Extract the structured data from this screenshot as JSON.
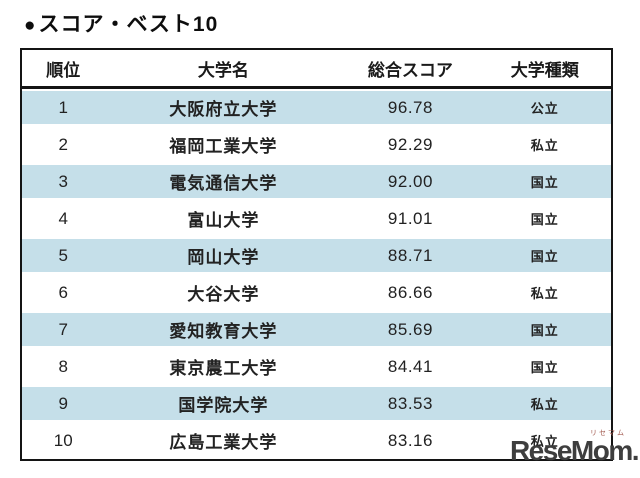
{
  "title": {
    "bullet": "●",
    "text": "スコア・ベスト10"
  },
  "table": {
    "headers": [
      "順位",
      "大学名",
      "総合スコア",
      "大学種類"
    ],
    "rows": [
      {
        "rank": "1",
        "name": "大阪府立大学",
        "score": "96.78",
        "type": "公立"
      },
      {
        "rank": "2",
        "name": "福岡工業大学",
        "score": "92.29",
        "type": "私立"
      },
      {
        "rank": "3",
        "name": "電気通信大学",
        "score": "92.00",
        "type": "国立"
      },
      {
        "rank": "4",
        "name": "富山大学",
        "score": "91.01",
        "type": "国立"
      },
      {
        "rank": "5",
        "name": "岡山大学",
        "score": "88.71",
        "type": "国立"
      },
      {
        "rank": "6",
        "name": "大谷大学",
        "score": "86.66",
        "type": "私立"
      },
      {
        "rank": "7",
        "name": "愛知教育大学",
        "score": "85.69",
        "type": "国立"
      },
      {
        "rank": "8",
        "name": "東京農工大学",
        "score": "84.41",
        "type": "国立"
      },
      {
        "rank": "9",
        "name": "国学院大学",
        "score": "83.53",
        "type": "私立"
      },
      {
        "rank": "10",
        "name": "広島工業大学",
        "score": "83.16",
        "type": "私立"
      }
    ]
  },
  "watermark": {
    "logo": "ReseMom.",
    "ruby": "リセマム"
  },
  "colors": {
    "row_alt": "#c5dfe9",
    "border": "#141414",
    "text": "#222222",
    "watermark": "#3e3e3e",
    "watermark_ruby": "#a2594e"
  },
  "chart_data": {
    "type": "table",
    "title": "スコア・ベスト10",
    "columns": [
      "順位",
      "大学名",
      "総合スコア",
      "大学種類"
    ],
    "rows": [
      [
        1,
        "大阪府立大学",
        96.78,
        "公立"
      ],
      [
        2,
        "福岡工業大学",
        92.29,
        "私立"
      ],
      [
        3,
        "電気通信大学",
        92.0,
        "国立"
      ],
      [
        4,
        "富山大学",
        91.01,
        "国立"
      ],
      [
        5,
        "岡山大学",
        88.71,
        "国立"
      ],
      [
        6,
        "大谷大学",
        86.66,
        "私立"
      ],
      [
        7,
        "愛知教育大学",
        85.69,
        "国立"
      ],
      [
        8,
        "東京農工大学",
        84.41,
        "国立"
      ],
      [
        9,
        "国学院大学",
        83.53,
        "私立"
      ],
      [
        10,
        "広島工業大学",
        83.16,
        "私立"
      ]
    ],
    "layout_hints": {
      "row_striping": "odd rows light blue #c5dfe9, even rows white",
      "header": "white background, bold, thick black bottom border",
      "outer_border": "2px solid black"
    }
  }
}
